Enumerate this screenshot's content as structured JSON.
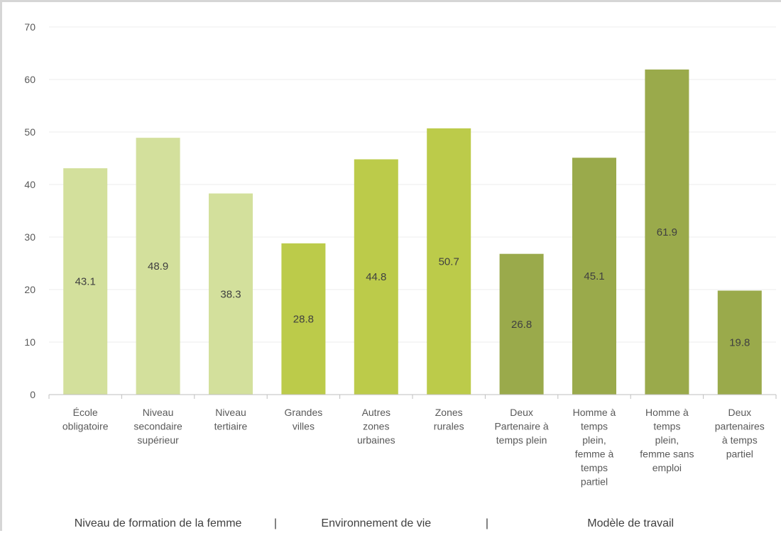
{
  "chart_data": {
    "type": "bar",
    "title": "",
    "xlabel": "",
    "ylabel": "",
    "ylim": [
      0,
      70
    ],
    "yticks": [
      0,
      10,
      20,
      30,
      40,
      50,
      60,
      70
    ],
    "grid": true,
    "legend": "none",
    "categories": [
      [
        "École",
        "obligatoire"
      ],
      [
        "Niveau",
        "secondaire",
        "supérieur"
      ],
      [
        "Niveau",
        "tertiaire"
      ],
      [
        "Grandes",
        "villes"
      ],
      [
        "Autres",
        "zones",
        "urbaines"
      ],
      [
        "Zones",
        "rurales"
      ],
      [
        "Deux",
        "Partenaire à",
        "temps plein"
      ],
      [
        "Homme à",
        "temps",
        "plein,",
        "femme à",
        "temps",
        "partiel"
      ],
      [
        "Homme à",
        "temps",
        "plein,",
        "femme sans",
        "emploi"
      ],
      [
        "Deux",
        "partenaires",
        "à temps",
        "partiel"
      ]
    ],
    "values": [
      43.1,
      48.9,
      38.3,
      28.8,
      44.8,
      50.7,
      26.8,
      45.1,
      61.9,
      19.8
    ],
    "value_labels": [
      "43.1",
      "48.9",
      "38.3",
      "28.8",
      "44.8",
      "50.7",
      "26.8",
      "45.1",
      "61.9",
      "19.8"
    ],
    "bar_colors": [
      "#d3e09c",
      "#d3e09c",
      "#d3e09c",
      "#bccb4a",
      "#bccb4a",
      "#bccb4a",
      "#9aaa4b",
      "#9aaa4b",
      "#9aaa4b",
      "#9aaa4b"
    ],
    "groups": [
      {
        "label": "Niveau de formation de la femme",
        "first": 0,
        "last": 2
      },
      {
        "label": "Environnement de vie",
        "first": 3,
        "last": 5
      },
      {
        "label": "Modèle de travail",
        "first": 6,
        "last": 9
      }
    ],
    "group_separator": "|"
  }
}
